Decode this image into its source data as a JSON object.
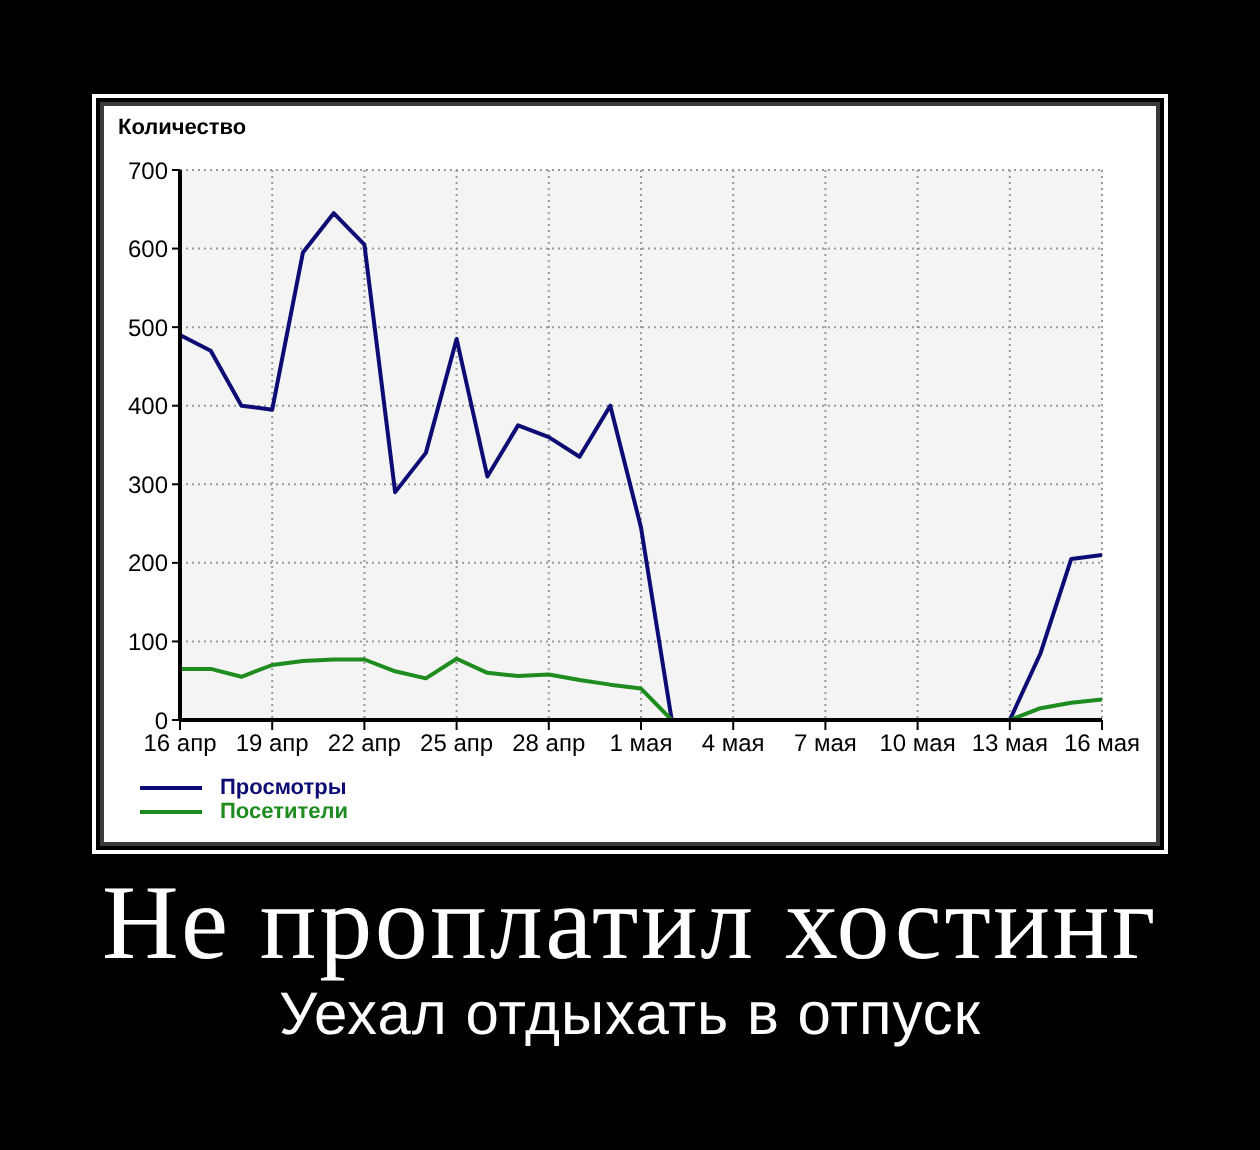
{
  "chart_data": {
    "type": "line",
    "title": "Не проплатил хостинг",
    "subtitle": "Уехал отдыхать в отпуск",
    "ylabel": "Количество",
    "categories": [
      "16 апр",
      null,
      null,
      "19 апр",
      null,
      null,
      "22 апр",
      null,
      null,
      "25 апр",
      null,
      null,
      "28 апр",
      null,
      null,
      "1 мая",
      null,
      null,
      "4 мая",
      null,
      null,
      "7 мая",
      null,
      null,
      "10 мая",
      null,
      null,
      "13 мая",
      null,
      null,
      "16 мая"
    ],
    "series": [
      {
        "name": "Просмотры",
        "color": "#0c0c74",
        "values": [
          490,
          470,
          400,
          395,
          595,
          645,
          605,
          290,
          340,
          485,
          310,
          375,
          360,
          335,
          400,
          245,
          0,
          0,
          0,
          0,
          0,
          0,
          0,
          0,
          0,
          0,
          0,
          0,
          85,
          205,
          210
        ]
      },
      {
        "name": "Посетители",
        "color": "#1e8c1e",
        "values": [
          65,
          65,
          55,
          70,
          75,
          77,
          77,
          62,
          53,
          78,
          60,
          56,
          58,
          51,
          45,
          40,
          0,
          0,
          0,
          0,
          0,
          0,
          0,
          0,
          0,
          0,
          0,
          0,
          15,
          22,
          26
        ]
      }
    ],
    "ylim": [
      0,
      700
    ],
    "yticks": [
      0,
      100,
      200,
      300,
      400,
      500,
      600,
      700
    ],
    "grid": true,
    "legend": "bottom left",
    "marker": "none",
    "line_style": "solid"
  }
}
